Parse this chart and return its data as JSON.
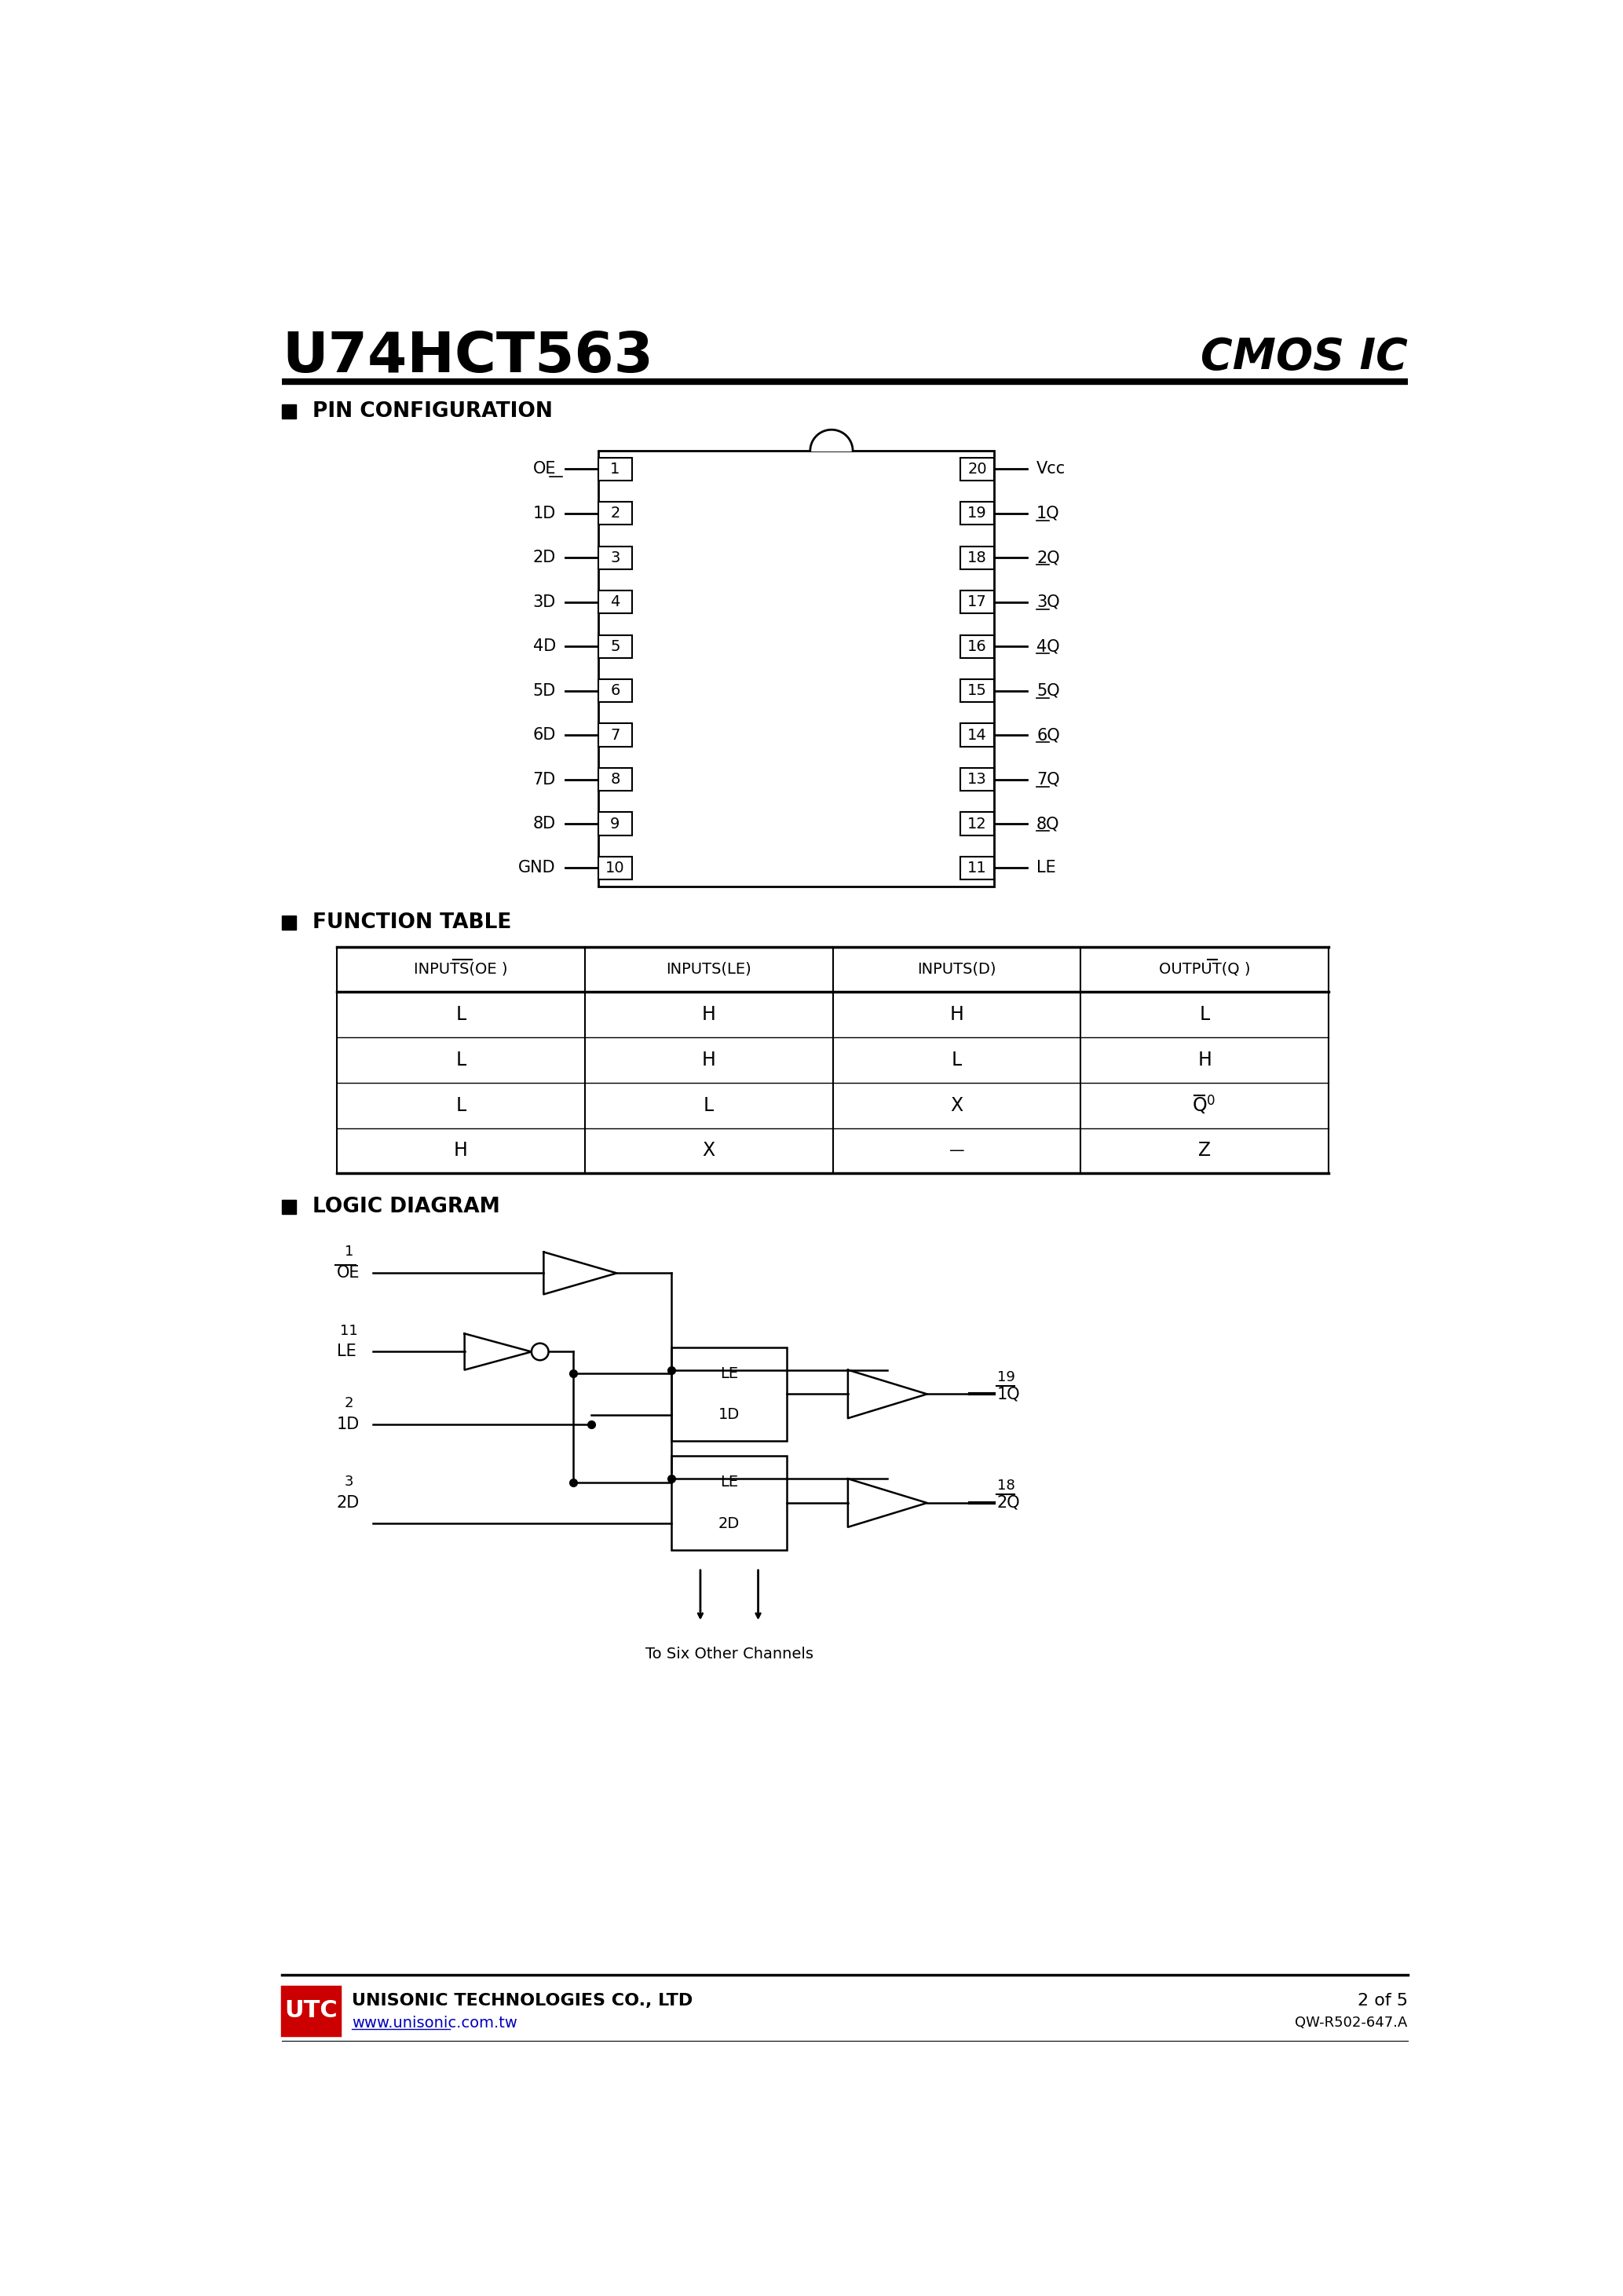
{
  "title": "U74HCT563",
  "title_right": "CMOS IC",
  "background_color": "#ffffff",
  "text_color": "#000000",
  "section1_title": "PIN CONFIGURATION",
  "section2_title": "FUNCTION TABLE",
  "section3_title": "LOGIC DIAGRAM",
  "pin_left": [
    "OE",
    "1D",
    "2D",
    "3D",
    "4D",
    "5D",
    "6D",
    "7D",
    "8D",
    "GND"
  ],
  "pin_left_nums": [
    1,
    2,
    3,
    4,
    5,
    6,
    7,
    8,
    9,
    10
  ],
  "pin_right": [
    "Vcc",
    "1Q",
    "2Q",
    "3Q",
    "4Q",
    "5Q",
    "6Q",
    "7Q",
    "8Q",
    "LE"
  ],
  "pin_right_nums": [
    20,
    19,
    18,
    17,
    16,
    15,
    14,
    13,
    12,
    11
  ],
  "pin_right_overline": [
    false,
    true,
    true,
    true,
    true,
    true,
    true,
    true,
    true,
    false
  ],
  "pin_left_overline": [
    true,
    false,
    false,
    false,
    false,
    false,
    false,
    false,
    false,
    false
  ],
  "func_table_rows": [
    [
      "L",
      "H",
      "H",
      "L"
    ],
    [
      "L",
      "H",
      "L",
      "H"
    ],
    [
      "L",
      "L",
      "X",
      "Q0"
    ],
    [
      "H",
      "X",
      "-",
      "Z"
    ]
  ],
  "footer_company": "UNISONIC TECHNOLOGIES CO., LTD",
  "footer_url": "www.unisonic.com.tw",
  "footer_page": "2 of 5",
  "footer_doc": "QW-R502-647.A",
  "utc_box_color": "#cc0000",
  "url_color": "#0000bb"
}
